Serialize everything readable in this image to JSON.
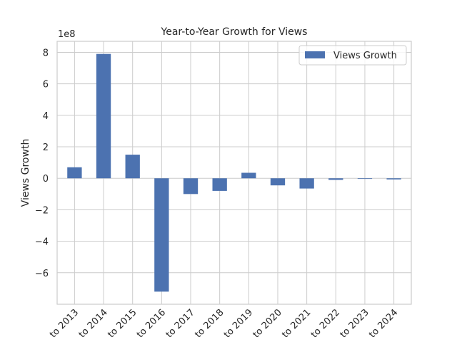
{
  "chart_data": {
    "type": "bar",
    "title": "Year-to-Year Growth for Views",
    "ylabel": "Views Growth",
    "xlabel": "",
    "offset_text": "1e8",
    "categories": [
      "to 2013",
      "to 2014",
      "to 2015",
      "to 2016",
      "to 2017",
      "to 2018",
      "to 2019",
      "to 2020",
      "to 2021",
      "to 2022",
      "to 2023",
      "to 2024"
    ],
    "series": [
      {
        "name": "Views Growth",
        "color": "#4c72b0",
        "values": [
          70000000,
          790000000,
          150000000,
          -720000000,
          -100000000,
          -80000000,
          35000000,
          -45000000,
          -65000000,
          -10000000,
          -4000000,
          -7000000
        ]
      }
    ],
    "ylim": [
      -800000000,
      870000000
    ],
    "yticks": [
      -600000000,
      -400000000,
      -200000000,
      0,
      200000000,
      400000000,
      600000000,
      800000000
    ],
    "ytick_labels": [
      "−6",
      "−4",
      "−2",
      "0",
      "2",
      "4",
      "6",
      "8"
    ],
    "grid": true,
    "legend_position": "top-right"
  }
}
